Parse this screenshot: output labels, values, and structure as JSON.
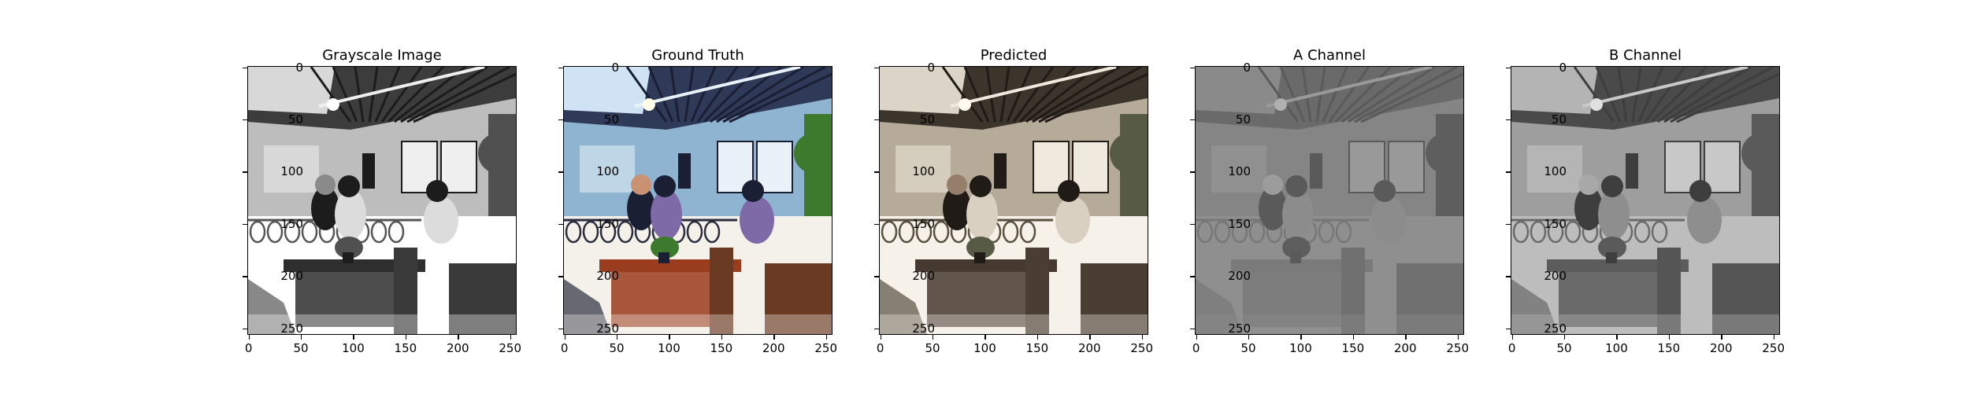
{
  "figure": {
    "panels": [
      {
        "title": "Grayscale Image",
        "style": "gray",
        "picture": "grayscale-cafe-scene"
      },
      {
        "title": "Ground Truth",
        "style": "color",
        "picture": "color-cafe-scene"
      },
      {
        "title": "Predicted",
        "style": "sepia",
        "picture": "predicted-cafe-scene"
      },
      {
        "title": "A Channel",
        "style": "flatgray",
        "picture": "a-channel-cafe-scene"
      },
      {
        "title": "B Channel",
        "style": "midgray",
        "picture": "b-channel-cafe-scene"
      }
    ],
    "xticks": [
      "0",
      "50",
      "100",
      "150",
      "200",
      "250"
    ],
    "yticks": [
      "0",
      "50",
      "100",
      "150",
      "200",
      "250"
    ],
    "axis_extent": [
      0,
      256
    ]
  }
}
